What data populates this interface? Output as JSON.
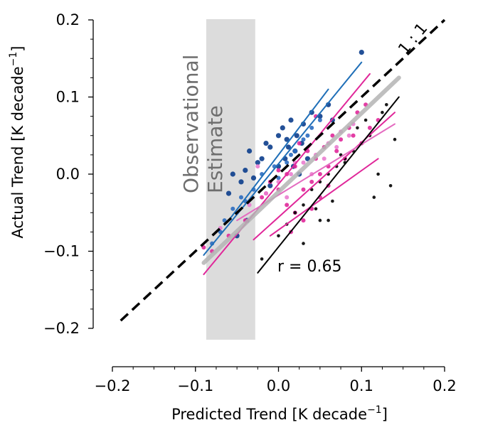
{
  "chart_data": {
    "type": "scatter",
    "xlabel": "Predicted Trend [K decade",
    "ylabel": "Actual Trend [K decade",
    "label_exponent": "−1",
    "label_close": "]",
    "xlim": [
      -0.2,
      0.2
    ],
    "ylim": [
      -0.2,
      0.2
    ],
    "x_ticks": [
      -0.2,
      -0.1,
      0.0,
      0.1,
      0.2
    ],
    "y_ticks": [
      -0.2,
      -0.1,
      0.0,
      0.1,
      0.2
    ],
    "x_tick_labels": [
      "−0.2",
      "−0.1",
      "0.0",
      "0.1",
      "0.2"
    ],
    "y_tick_labels": [
      "−0.2",
      "−0.1",
      "0.0",
      "0.1",
      "0.2"
    ],
    "grid": false,
    "observational_band": {
      "x_range": [
        -0.087,
        -0.028
      ],
      "label_line1": "Observational",
      "label_line2": "Estimate",
      "color": "#dcdcdc"
    },
    "one_to_one_line": {
      "label": "1 : 1",
      "x": [
        -0.19,
        0.2
      ],
      "y": [
        -0.19,
        0.2
      ],
      "color": "#000000"
    },
    "annotation": {
      "text": "r = 0.65"
    },
    "colors": {
      "blue": "#1f5fa8",
      "navy": "#0b2f7a",
      "magenta": "#e0289a",
      "pink": "#e46cc0",
      "black": "#000000",
      "gray": "#b4b4b4"
    },
    "regression_lines": [
      {
        "color": "#1f6fb8",
        "width": 2,
        "x": [
          -0.09,
          0.1
        ],
        "y": [
          -0.105,
          0.145
        ]
      },
      {
        "color": "#1f6fb8",
        "width": 2,
        "x": [
          -0.06,
          0.06
        ],
        "y": [
          -0.06,
          0.11
        ]
      },
      {
        "color": "#e0289a",
        "width": 2,
        "x": [
          -0.09,
          0.11
        ],
        "y": [
          -0.13,
          0.13
        ]
      },
      {
        "color": "#e0289a",
        "width": 2,
        "x": [
          -0.03,
          0.14
        ],
        "y": [
          -0.085,
          0.08
        ]
      },
      {
        "color": "#e0289a",
        "width": 2,
        "x": [
          -0.01,
          0.12
        ],
        "y": [
          -0.08,
          0.02
        ]
      },
      {
        "color": "#e46cc0",
        "width": 2,
        "x": [
          -0.05,
          0.14
        ],
        "y": [
          -0.06,
          0.065
        ]
      },
      {
        "color": "#000000",
        "width": 2,
        "x": [
          -0.025,
          0.145
        ],
        "y": [
          -0.128,
          0.1
        ]
      },
      {
        "color": "#b4b4b4",
        "width": 6,
        "x": [
          -0.09,
          0.145
        ],
        "y": [
          -0.115,
          0.125
        ]
      }
    ],
    "series": [
      {
        "color": "#0b3d8c",
        "x": [
          -0.06,
          -0.055,
          -0.04,
          -0.035,
          -0.025,
          -0.015,
          -0.01,
          0.0,
          0.005,
          0.01,
          0.015,
          0.02,
          0.025,
          0.03,
          0.035,
          0.04,
          0.05,
          0.06,
          0.065,
          -0.045,
          -0.03,
          -0.02,
          0.0,
          0.012,
          0.022,
          -0.01,
          0.008,
          0.018,
          0.028,
          -0.05,
          -0.038,
          0.1
        ],
        "y": [
          -0.025,
          0.0,
          0.005,
          0.03,
          0.015,
          0.04,
          -0.015,
          0.05,
          0.06,
          0.045,
          0.07,
          0.03,
          0.0,
          0.065,
          0.02,
          0.08,
          0.075,
          0.09,
          0.07,
          -0.01,
          -0.005,
          0.02,
          0.01,
          0.035,
          0.05,
          0.035,
          0.02,
          0.01,
          0.04,
          -0.08,
          -0.06,
          0.158
        ]
      },
      {
        "color": "#2a6cc0",
        "x": [
          -0.08,
          -0.07,
          -0.065,
          -0.045,
          -0.03,
          -0.02,
          -0.005,
          0.01,
          0.02,
          0.03,
          0.04,
          0.05,
          -0.055,
          -0.04,
          0.0,
          0.015,
          0.035
        ],
        "y": [
          -0.09,
          -0.075,
          -0.06,
          -0.03,
          -0.02,
          0.0,
          0.01,
          0.015,
          0.03,
          0.045,
          0.06,
          0.07,
          -0.045,
          -0.035,
          -0.005,
          0.025,
          0.05
        ]
      },
      {
        "color": "#e0289a",
        "x": [
          -0.09,
          -0.08,
          -0.06,
          -0.04,
          -0.02,
          -0.01,
          0.0,
          0.01,
          0.02,
          0.03,
          0.04,
          0.05,
          0.06,
          0.07,
          0.08,
          0.09,
          0.1,
          0.11,
          0.12,
          0.02,
          0.035,
          0.045,
          0.055,
          0.065,
          0.075,
          0.085,
          0.095,
          0.105,
          0.03,
          0.04,
          0.05,
          0.06,
          0.0,
          0.01,
          -0.015,
          0.015,
          0.025,
          0.045
        ],
        "y": [
          -0.095,
          -0.1,
          -0.08,
          -0.06,
          -0.03,
          -0.01,
          -0.02,
          -0.04,
          -0.05,
          -0.02,
          -0.01,
          0.0,
          0.01,
          0.03,
          0.02,
          0.05,
          0.04,
          0.06,
          0.07,
          0.01,
          0.03,
          0.02,
          0.035,
          0.05,
          0.045,
          0.06,
          0.08,
          0.09,
          -0.06,
          -0.045,
          -0.03,
          -0.015,
          0.005,
          0.0,
          -0.025,
          -0.075,
          0.04,
          0.075
        ]
      },
      {
        "color": "#ea7ccf",
        "x": [
          -0.07,
          -0.05,
          -0.035,
          -0.015,
          0.0,
          0.015,
          0.03,
          0.045,
          0.06,
          0.075,
          0.09,
          0.01,
          0.02,
          0.04,
          0.055,
          0.07,
          0.085,
          -0.025
        ],
        "y": [
          -0.07,
          -0.05,
          -0.04,
          -0.025,
          -0.01,
          0.0,
          0.015,
          0.025,
          0.04,
          0.055,
          0.065,
          -0.03,
          0.015,
          0.0,
          0.02,
          0.035,
          0.05,
          0.01
        ]
      },
      {
        "color": "#000000",
        "x": [
          -0.02,
          0.0,
          0.01,
          0.02,
          0.03,
          0.04,
          0.05,
          0.06,
          0.07,
          0.08,
          0.09,
          0.1,
          0.11,
          0.12,
          0.125,
          0.13,
          0.135,
          0.14,
          0.05,
          0.065,
          0.08,
          0.095,
          0.105,
          0.115,
          0.03,
          0.045,
          0.06,
          0.075
        ],
        "y": [
          -0.11,
          -0.08,
          -0.065,
          -0.05,
          -0.04,
          -0.02,
          -0.01,
          0.0,
          0.01,
          0.02,
          0.03,
          0.04,
          0.05,
          0.0,
          0.08,
          0.09,
          -0.015,
          0.045,
          -0.06,
          -0.035,
          0.015,
          0.06,
          0.07,
          -0.03,
          -0.09,
          -0.045,
          -0.06,
          0.025
        ]
      }
    ]
  }
}
